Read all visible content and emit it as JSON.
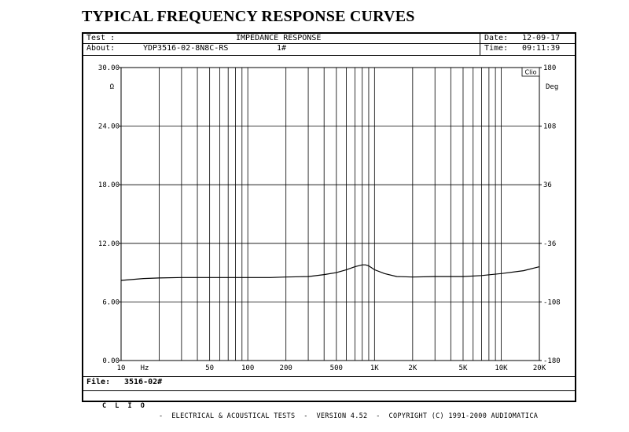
{
  "page_title": "TYPICAL FREQUENCY RESPONSE CURVES",
  "header": {
    "test_label": "Test :",
    "about_label": "About:",
    "about_value": "YDP3516-02-8N8C-RS",
    "about_tag": "1#",
    "title": "IMPEDANCE RESPONSE",
    "date_label": "Date:",
    "date_value": "12-09-17",
    "time_label": "Time:",
    "time_value": "09:11:39"
  },
  "file": {
    "label": "File:",
    "value": "3516-02#"
  },
  "footer": {
    "brand": "C L I O",
    "text": "-  ELECTRICAL & ACOUSTICAL TESTS  -  VERSION 4.52  -  COPYRIGHT (C) 1991-2000 AUDIOMATICA"
  },
  "chart_data": {
    "type": "line",
    "title": "IMPEDANCE RESPONSE",
    "corner_label": "Clio",
    "xscale": "log",
    "xlim": [
      10,
      20000
    ],
    "ylim": [
      0,
      30
    ],
    "y2lim": [
      -180,
      180
    ],
    "ylabel": "Ω",
    "y2label": "Deg",
    "grid": true,
    "x_ticks": [
      {
        "value": 10,
        "label": "10"
      },
      {
        "value": 50,
        "label": "50"
      },
      {
        "value": 100,
        "label": "100"
      },
      {
        "value": 200,
        "label": "200"
      },
      {
        "value": 500,
        "label": "500"
      },
      {
        "value": 1000,
        "label": "1K"
      },
      {
        "value": 2000,
        "label": "2K"
      },
      {
        "value": 5000,
        "label": "5K"
      },
      {
        "value": 10000,
        "label": "10K"
      },
      {
        "value": 20000,
        "label": "20K"
      }
    ],
    "x_unit_label": "Hz",
    "y_ticks": [
      {
        "value": 0,
        "label": "0.00"
      },
      {
        "value": 6,
        "label": "6.00"
      },
      {
        "value": 12,
        "label": "12.00"
      },
      {
        "value": 18,
        "label": "18.00"
      },
      {
        "value": 24,
        "label": "24.00"
      },
      {
        "value": 30,
        "label": "30.00"
      }
    ],
    "y2_ticks": [
      {
        "value": -180,
        "label": "-180"
      },
      {
        "value": -108,
        "label": "-108"
      },
      {
        "value": -36,
        "label": "-36"
      },
      {
        "value": 36,
        "label": "36"
      },
      {
        "value": 108,
        "label": "108"
      },
      {
        "value": 180,
        "label": "180"
      }
    ],
    "series": [
      {
        "color": "#000000",
        "x": [
          10,
          15,
          20,
          30,
          50,
          70,
          100,
          150,
          200,
          300,
          400,
          500,
          600,
          700,
          800,
          850,
          900,
          1000,
          1200,
          1500,
          2000,
          3000,
          5000,
          7000,
          10000,
          15000,
          20000
        ],
        "y": [
          8.2,
          8.4,
          8.45,
          8.5,
          8.5,
          8.5,
          8.5,
          8.5,
          8.55,
          8.6,
          8.8,
          9.0,
          9.3,
          9.6,
          9.8,
          9.8,
          9.7,
          9.3,
          8.9,
          8.6,
          8.55,
          8.6,
          8.6,
          8.7,
          8.9,
          9.2,
          9.6
        ]
      }
    ]
  }
}
